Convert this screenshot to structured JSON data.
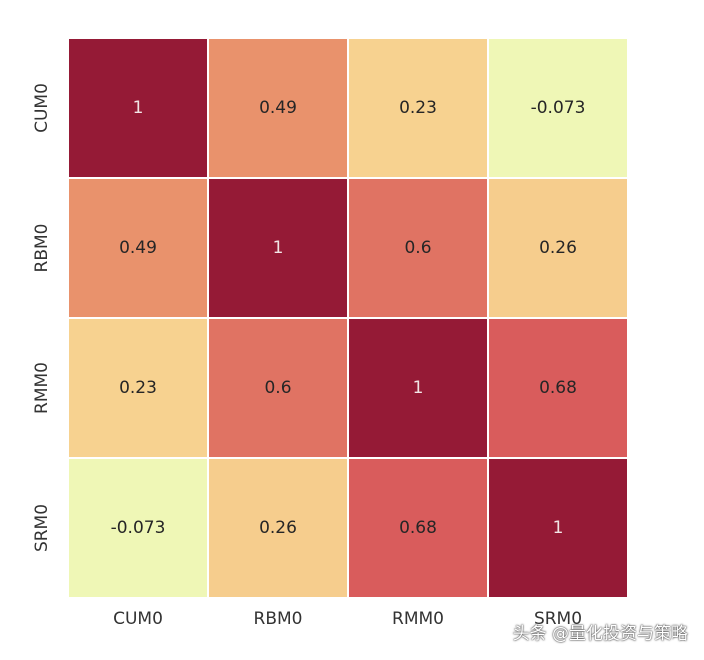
{
  "chart_data": {
    "type": "heatmap",
    "title": "",
    "xlabel": "",
    "ylabel": "",
    "x_categories": [
      "CUM0",
      "RBM0",
      "RMM0",
      "SRM0"
    ],
    "y_categories": [
      "CUM0",
      "RBM0",
      "RMM0",
      "SRM0"
    ],
    "values": [
      [
        1,
        0.49,
        0.23,
        -0.073
      ],
      [
        0.49,
        1,
        0.6,
        0.26
      ],
      [
        0.23,
        0.6,
        1,
        0.68
      ],
      [
        -0.073,
        0.26,
        0.68,
        1
      ]
    ],
    "cell_labels": [
      [
        "1",
        "0.49",
        "0.23",
        "-0.073"
      ],
      [
        "0.49",
        "1",
        "0.6",
        "0.26"
      ],
      [
        "0.23",
        "0.6",
        "1",
        "0.68"
      ],
      [
        "-0.073",
        "0.26",
        "0.68",
        "1"
      ]
    ],
    "colormap": "YlOrRd",
    "colorbar": false,
    "grid_lines_color": "#ffffff"
  },
  "watermark": "头条 @量化投资与策略",
  "colors": {
    "high": "#951a36",
    "mid_high": "#d95c5c",
    "mid": "#e9926c",
    "mid_low": "#f7d08e",
    "low": "#eff7b6"
  }
}
